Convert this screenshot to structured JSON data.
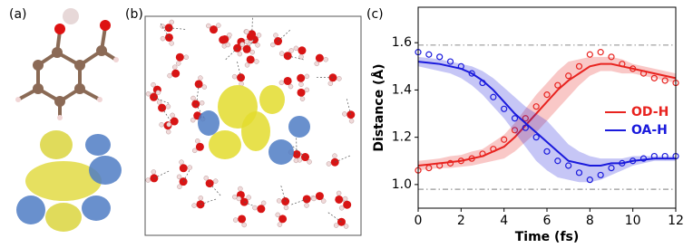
{
  "panel_labels": [
    "(a)",
    "(b)",
    "(c)"
  ],
  "chart_data": {
    "type": "line",
    "xlabel": "Time (fs)",
    "ylabel": "Distance (Å)",
    "xlim": [
      0,
      12
    ],
    "ylim": [
      0.9,
      1.75
    ],
    "xticks": [
      0,
      2,
      4,
      6,
      8,
      10,
      12
    ],
    "yticks": [
      {
        "value": 1,
        "label": "1.0"
      },
      1.2,
      1.4,
      1.6
    ],
    "hlines": [
      1.59,
      0.98
    ],
    "x": [
      0,
      0.5,
      1,
      1.5,
      2,
      2.5,
      3,
      3.5,
      4,
      4.5,
      5,
      5.5,
      6,
      6.5,
      7,
      7.5,
      8,
      8.5,
      9,
      9.5,
      10,
      10.5,
      11,
      11.5,
      12
    ],
    "series": [
      {
        "name": "OD-H",
        "color": "#e8231f",
        "values": [
          1.08,
          1.085,
          1.09,
          1.095,
          1.1,
          1.11,
          1.12,
          1.14,
          1.16,
          1.2,
          1.25,
          1.3,
          1.35,
          1.4,
          1.44,
          1.47,
          1.5,
          1.51,
          1.51,
          1.5,
          1.49,
          1.48,
          1.47,
          1.46,
          1.45
        ],
        "lower": [
          1.06,
          1.065,
          1.07,
          1.07,
          1.075,
          1.08,
          1.09,
          1.1,
          1.11,
          1.14,
          1.18,
          1.22,
          1.27,
          1.32,
          1.37,
          1.42,
          1.46,
          1.48,
          1.48,
          1.47,
          1.47,
          1.46,
          1.45,
          1.44,
          1.43
        ],
        "upper": [
          1.1,
          1.105,
          1.11,
          1.12,
          1.125,
          1.14,
          1.15,
          1.18,
          1.21,
          1.26,
          1.32,
          1.38,
          1.43,
          1.48,
          1.52,
          1.53,
          1.54,
          1.54,
          1.54,
          1.53,
          1.51,
          1.5,
          1.49,
          1.48,
          1.47
        ],
        "markers": [
          1.06,
          1.07,
          1.08,
          1.09,
          1.1,
          1.11,
          1.13,
          1.15,
          1.19,
          1.23,
          1.28,
          1.33,
          1.38,
          1.42,
          1.46,
          1.5,
          1.55,
          1.56,
          1.54,
          1.51,
          1.49,
          1.47,
          1.45,
          1.44,
          1.43
        ]
      },
      {
        "name": "OA-H",
        "color": "#1a1adc",
        "values": [
          1.52,
          1.515,
          1.51,
          1.5,
          1.49,
          1.47,
          1.44,
          1.4,
          1.35,
          1.3,
          1.26,
          1.22,
          1.18,
          1.14,
          1.1,
          1.09,
          1.08,
          1.08,
          1.09,
          1.09,
          1.1,
          1.105,
          1.11,
          1.11,
          1.11
        ],
        "lower": [
          1.5,
          1.49,
          1.48,
          1.47,
          1.45,
          1.42,
          1.38,
          1.33,
          1.28,
          1.22,
          1.16,
          1.1,
          1.06,
          1.03,
          1.02,
          1.01,
          1.01,
          1.02,
          1.04,
          1.06,
          1.08,
          1.09,
          1.1,
          1.1,
          1.1
        ],
        "upper": [
          1.54,
          1.535,
          1.53,
          1.52,
          1.51,
          1.5,
          1.48,
          1.45,
          1.41,
          1.37,
          1.33,
          1.3,
          1.27,
          1.22,
          1.17,
          1.14,
          1.12,
          1.11,
          1.11,
          1.11,
          1.12,
          1.12,
          1.12,
          1.12,
          1.12
        ],
        "markers": [
          1.56,
          1.55,
          1.54,
          1.52,
          1.5,
          1.47,
          1.43,
          1.37,
          1.32,
          1.28,
          1.24,
          1.2,
          1.14,
          1.1,
          1.08,
          1.05,
          1.02,
          1.04,
          1.07,
          1.09,
          1.1,
          1.11,
          1.12,
          1.12,
          1.12
        ]
      }
    ]
  }
}
